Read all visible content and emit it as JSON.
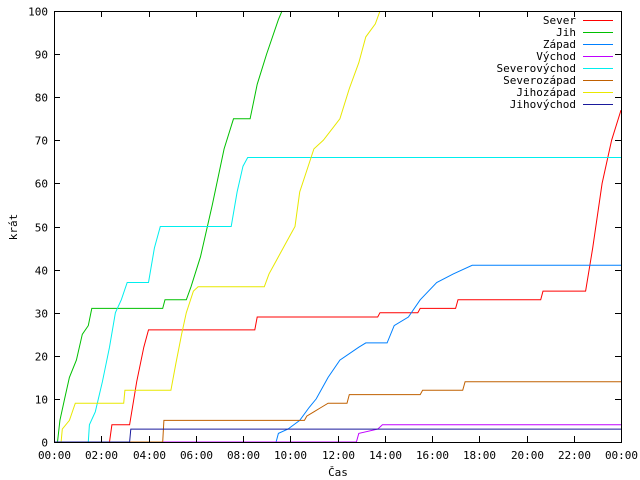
{
  "chart_data": {
    "type": "line",
    "title": "",
    "xlabel": "Čas",
    "ylabel": "krát",
    "x_unit": "hours",
    "xlim": [
      0,
      24
    ],
    "ylim": [
      0,
      100
    ],
    "grid": false,
    "legend_position": "top-right",
    "x_ticks": [
      {
        "value": 0,
        "label": "00:00"
      },
      {
        "value": 2,
        "label": "02:00"
      },
      {
        "value": 4,
        "label": "04:00"
      },
      {
        "value": 6,
        "label": "06:00"
      },
      {
        "value": 8,
        "label": "08:00"
      },
      {
        "value": 10,
        "label": "10:00"
      },
      {
        "value": 12,
        "label": "12:00"
      },
      {
        "value": 14,
        "label": "14:00"
      },
      {
        "value": 16,
        "label": "16:00"
      },
      {
        "value": 18,
        "label": "18:00"
      },
      {
        "value": 20,
        "label": "20:00"
      },
      {
        "value": 22,
        "label": "22:00"
      },
      {
        "value": 24,
        "label": "00:00"
      }
    ],
    "y_ticks": [
      {
        "value": 0,
        "label": "0"
      },
      {
        "value": 10,
        "label": "10"
      },
      {
        "value": 20,
        "label": "20"
      },
      {
        "value": 30,
        "label": "30"
      },
      {
        "value": 40,
        "label": "40"
      },
      {
        "value": 50,
        "label": "50"
      },
      {
        "value": 60,
        "label": "60"
      },
      {
        "value": 70,
        "label": "70"
      },
      {
        "value": 80,
        "label": "80"
      },
      {
        "value": 90,
        "label": "90"
      },
      {
        "value": 100,
        "label": "100"
      }
    ],
    "series": [
      {
        "name": "Sever",
        "color": "#ff0000",
        "points": [
          [
            0,
            0
          ],
          [
            2.35,
            0
          ],
          [
            2.45,
            4
          ],
          [
            3.2,
            4
          ],
          [
            3.5,
            14
          ],
          [
            3.8,
            22
          ],
          [
            4.0,
            26
          ],
          [
            8.5,
            26
          ],
          [
            8.6,
            29
          ],
          [
            13.7,
            29
          ],
          [
            13.8,
            30
          ],
          [
            15.4,
            30
          ],
          [
            15.5,
            31
          ],
          [
            17.0,
            31
          ],
          [
            17.1,
            33
          ],
          [
            20.6,
            33
          ],
          [
            20.7,
            35
          ],
          [
            22.5,
            35
          ],
          [
            22.8,
            45
          ],
          [
            23.2,
            60
          ],
          [
            23.6,
            70
          ],
          [
            24.0,
            77
          ]
        ]
      },
      {
        "name": "Jih",
        "color": "#00c000",
        "points": [
          [
            0,
            0
          ],
          [
            0.15,
            0
          ],
          [
            0.25,
            5
          ],
          [
            0.45,
            10
          ],
          [
            0.65,
            15
          ],
          [
            0.95,
            19
          ],
          [
            1.2,
            25
          ],
          [
            1.45,
            27
          ],
          [
            1.6,
            31
          ],
          [
            4.6,
            31
          ],
          [
            4.7,
            33
          ],
          [
            5.6,
            33
          ],
          [
            5.8,
            36
          ],
          [
            6.2,
            43
          ],
          [
            6.7,
            55
          ],
          [
            7.2,
            68
          ],
          [
            7.6,
            75
          ],
          [
            8.3,
            75
          ],
          [
            8.6,
            83
          ],
          [
            9.0,
            90
          ],
          [
            9.5,
            98
          ],
          [
            9.65,
            100
          ]
        ]
      },
      {
        "name": "Západ",
        "color": "#0080ff",
        "points": [
          [
            0,
            0
          ],
          [
            9.4,
            0
          ],
          [
            9.5,
            2
          ],
          [
            9.9,
            3
          ],
          [
            10.4,
            5
          ],
          [
            10.8,
            8
          ],
          [
            11.1,
            10
          ],
          [
            11.6,
            15
          ],
          [
            12.1,
            19
          ],
          [
            12.9,
            22
          ],
          [
            13.2,
            23
          ],
          [
            14.1,
            23
          ],
          [
            14.4,
            27
          ],
          [
            15.0,
            29
          ],
          [
            15.5,
            33
          ],
          [
            16.2,
            37
          ],
          [
            16.9,
            39
          ],
          [
            17.7,
            41
          ],
          [
            24,
            41
          ]
        ]
      },
      {
        "name": "Východ",
        "color": "#c000ff",
        "points": [
          [
            0,
            0
          ],
          [
            12.8,
            0
          ],
          [
            12.9,
            2
          ],
          [
            13.7,
            3
          ],
          [
            13.9,
            4
          ],
          [
            24,
            4
          ]
        ]
      },
      {
        "name": "Severovýchod",
        "color": "#00eeee",
        "points": [
          [
            0,
            0
          ],
          [
            1.45,
            0
          ],
          [
            1.5,
            4
          ],
          [
            1.75,
            7
          ],
          [
            2.05,
            14
          ],
          [
            2.35,
            22
          ],
          [
            2.6,
            30
          ],
          [
            2.85,
            33
          ],
          [
            3.1,
            37
          ],
          [
            4.0,
            37
          ],
          [
            4.25,
            45
          ],
          [
            4.5,
            50
          ],
          [
            7.5,
            50
          ],
          [
            7.75,
            58
          ],
          [
            8.0,
            64
          ],
          [
            8.2,
            66
          ],
          [
            24,
            66
          ]
        ]
      },
      {
        "name": "Severozápad",
        "color": "#c06000",
        "points": [
          [
            0,
            0
          ],
          [
            4.6,
            0
          ],
          [
            4.65,
            5
          ],
          [
            10.6,
            5
          ],
          [
            10.7,
            6
          ],
          [
            11.0,
            7
          ],
          [
            11.3,
            8
          ],
          [
            11.6,
            9
          ],
          [
            12.4,
            9
          ],
          [
            12.5,
            11
          ],
          [
            15.5,
            11
          ],
          [
            15.6,
            12
          ],
          [
            17.3,
            12
          ],
          [
            17.4,
            14
          ],
          [
            24,
            14
          ]
        ]
      },
      {
        "name": "Jihozápad",
        "color": "#e8e800",
        "points": [
          [
            0,
            0
          ],
          [
            0.3,
            0
          ],
          [
            0.35,
            3
          ],
          [
            0.65,
            5
          ],
          [
            0.9,
            9
          ],
          [
            2.95,
            9
          ],
          [
            3.0,
            12
          ],
          [
            4.95,
            12
          ],
          [
            5.15,
            18
          ],
          [
            5.4,
            25
          ],
          [
            5.6,
            30
          ],
          [
            5.9,
            35
          ],
          [
            6.1,
            36
          ],
          [
            8.9,
            36
          ],
          [
            9.1,
            39
          ],
          [
            9.4,
            42
          ],
          [
            9.8,
            46
          ],
          [
            10.2,
            50
          ],
          [
            10.4,
            58
          ],
          [
            10.7,
            63
          ],
          [
            11.0,
            68
          ],
          [
            11.4,
            70
          ],
          [
            12.1,
            75
          ],
          [
            12.5,
            82
          ],
          [
            12.9,
            88
          ],
          [
            13.2,
            94
          ],
          [
            13.6,
            97
          ],
          [
            13.8,
            100
          ]
        ]
      },
      {
        "name": "Jihovýchod",
        "color": "#1a1a9c",
        "points": [
          [
            0,
            0
          ],
          [
            3.2,
            0
          ],
          [
            3.25,
            3
          ],
          [
            24,
            3
          ]
        ]
      }
    ]
  }
}
